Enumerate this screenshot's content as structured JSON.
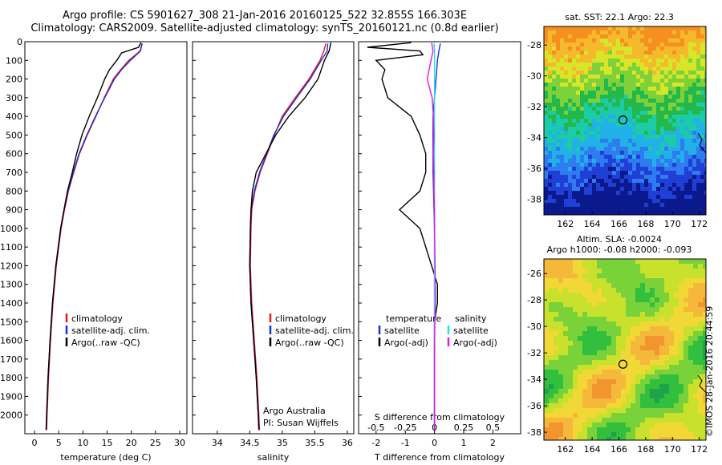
{
  "header": {
    "line1": "Argo profile: CS 5901627_308 21-Jan-2016 20160125_522 32.855S 166.303E",
    "line2": "Climatology: CARS2009. Satellite-adjusted climatology: synTS_20160121.nc (0.8d earlier)"
  },
  "stamp": "©IMOS 28-Jan-2016 20:44:59",
  "colors": {
    "red": "#e41a1c",
    "blue": "#1f2fd6",
    "black": "#000000",
    "magenta": "#e815e8",
    "cyan": "#22e5e5"
  },
  "depth_ticks": [
    "0",
    "100",
    "200",
    "300",
    "400",
    "500",
    "600",
    "700",
    "800",
    "900",
    "1000",
    "1100",
    "1200",
    "1300",
    "1400",
    "1500",
    "1600",
    "1700",
    "1800",
    "1900",
    "2000"
  ],
  "chart_data": [
    {
      "type": "line",
      "xlabel": "temperature (deg C)",
      "xticks": [
        "0",
        "5",
        "10",
        "15",
        "20",
        "25",
        "30"
      ],
      "xlim": [
        -2,
        31.5
      ],
      "ylim": [
        2100,
        0
      ],
      "legend": [
        "climatology",
        "satellite-adj. clim.",
        "Argo(..raw -QC)"
      ],
      "series": [
        {
          "name": "climatology",
          "color": "red",
          "depth": [
            10,
            50,
            100,
            150,
            200,
            300,
            400,
            500,
            600,
            700,
            800,
            900,
            1000,
            1200,
            1400,
            1600,
            1800,
            2000,
            2080
          ],
          "values": [
            22.3,
            21.8,
            19.5,
            17.8,
            16.3,
            14.4,
            12.7,
            10.9,
            9.3,
            8.1,
            7.0,
            6.2,
            5.5,
            4.5,
            3.8,
            3.3,
            2.9,
            2.6,
            2.5
          ]
        },
        {
          "name": "satellite-adj. clim.",
          "color": "blue",
          "depth": [
            10,
            50,
            100,
            150,
            200,
            300,
            400,
            500,
            600,
            700,
            800,
            900,
            1000,
            1200,
            1400,
            1600,
            1800,
            2000,
            2080
          ],
          "values": [
            22.2,
            21.9,
            19.8,
            18.0,
            16.5,
            14.5,
            12.6,
            10.8,
            9.2,
            8.0,
            6.9,
            6.1,
            5.4,
            4.4,
            3.7,
            3.2,
            2.8,
            2.5,
            2.4
          ]
        },
        {
          "name": "Argo(..raw -QC)",
          "color": "black",
          "depth": [
            5,
            30,
            60,
            100,
            150,
            200,
            300,
            400,
            500,
            600,
            700,
            800,
            900,
            1000,
            1200,
            1400,
            1600,
            1800,
            2000,
            2080
          ],
          "values": [
            22.0,
            21.5,
            18.0,
            17.0,
            15.5,
            14.5,
            13.0,
            11.3,
            9.8,
            8.7,
            7.8,
            6.8,
            6.1,
            5.4,
            4.4,
            3.7,
            3.2,
            2.8,
            2.5,
            2.4
          ]
        }
      ],
      "caption": []
    },
    {
      "type": "line",
      "xlabel": "salinity",
      "xticks": [
        "34",
        "34.5",
        "35",
        "35.5",
        "36"
      ],
      "xlim": [
        33.62,
        36.1
      ],
      "ylim": [
        2100,
        0
      ],
      "legend": [
        "climatology",
        "satellite-adj. clim.",
        "Argo(..raw -QC)"
      ],
      "series": [
        {
          "name": "climatology",
          "color": "red",
          "depth": [
            10,
            50,
            100,
            200,
            300,
            400,
            500,
            600,
            700,
            800,
            900,
            1000,
            1200,
            1400,
            1600,
            1800,
            2000,
            2080
          ],
          "values": [
            35.67,
            35.64,
            35.58,
            35.41,
            35.2,
            35.0,
            34.88,
            34.77,
            34.66,
            34.58,
            34.53,
            34.52,
            34.51,
            34.53,
            34.57,
            34.61,
            34.64,
            34.65
          ]
        },
        {
          "name": "satellite-adj. clim.",
          "color": "blue",
          "depth": [
            10,
            50,
            100,
            200,
            300,
            400,
            500,
            600,
            700,
            800,
            900,
            1000,
            1200,
            1400,
            1600,
            1800,
            2000,
            2080
          ],
          "values": [
            35.7,
            35.69,
            35.6,
            35.43,
            35.22,
            35.02,
            34.87,
            34.76,
            34.65,
            34.57,
            34.52,
            34.51,
            34.5,
            34.52,
            34.56,
            34.6,
            34.63,
            34.64
          ]
        },
        {
          "name": "Argo(..raw -QC)",
          "color": "black",
          "depth": [
            5,
            50,
            100,
            200,
            300,
            400,
            500,
            600,
            700,
            800,
            900,
            1000,
            1200,
            1400,
            1600,
            1800,
            2000,
            2080
          ],
          "values": [
            35.75,
            35.72,
            35.65,
            35.55,
            35.35,
            35.1,
            34.9,
            34.75,
            34.6,
            34.54,
            34.52,
            34.51,
            34.5,
            34.52,
            34.56,
            34.6,
            34.63,
            34.64
          ]
        }
      ],
      "caption": [
        "Argo Australia",
        "PI: Susan Wijffels"
      ]
    },
    {
      "type": "line",
      "xlabel": "T difference from climatology",
      "xticks": [
        "-2",
        "-1",
        "0",
        "1",
        "2"
      ],
      "x2label": "S difference from climatology",
      "x2ticks": [
        "-0.5",
        "-0.25",
        "0",
        "0.25",
        "0.5"
      ],
      "xlim": [
        -2.6,
        2.95
      ],
      "ylim": [
        2100,
        0
      ],
      "legend_titles": [
        "temperature",
        "salinity"
      ],
      "legend": [
        [
          "satellite",
          "Argo(-adj)"
        ],
        [
          "satellite",
          "Argo(-adj)"
        ]
      ],
      "series": [
        {
          "name": "satellite",
          "group": "temperature",
          "color": "blue",
          "depth": [
            10,
            50,
            100,
            200,
            400,
            700,
            1000,
            1500,
            2000,
            2080
          ],
          "values": [
            0.2,
            0.15,
            0.1,
            0.05,
            -0.05,
            -0.05,
            0.0,
            0.0,
            0.0,
            0.0
          ]
        },
        {
          "name": "Argo(-adj)",
          "group": "temperature",
          "color": "black",
          "depth": [
            5,
            30,
            50,
            70,
            100,
            150,
            200,
            300,
            400,
            500,
            600,
            700,
            800,
            900,
            1000,
            1100,
            1200,
            1300,
            1400,
            1500,
            1600,
            1800,
            2000,
            2080
          ],
          "values": [
            -0.8,
            -2.3,
            -0.5,
            -0.4,
            -2.0,
            -1.7,
            -1.8,
            -1.6,
            -0.8,
            -0.5,
            -0.3,
            -0.3,
            -0.5,
            -1.2,
            -0.5,
            -0.3,
            -0.1,
            0.1,
            0.1,
            0.0,
            0.0,
            0.0,
            0.0,
            0.0
          ]
        },
        {
          "name": "satellite",
          "group": "salinity",
          "color": "cyan",
          "depth": [
            10,
            50,
            100,
            200,
            400,
            700,
            1000,
            1500,
            2000,
            2080
          ],
          "values": [
            -0.02,
            0.0,
            0.0,
            0.0,
            0.0,
            0.0,
            0.0,
            0.0,
            0.0,
            0.0
          ]
        },
        {
          "name": "Argo(-adj)",
          "group": "salinity",
          "color": "magenta",
          "depth": [
            5,
            50,
            100,
            200,
            300,
            400,
            500,
            600,
            700,
            800,
            900,
            1000,
            1200,
            1400,
            1600,
            1800,
            2000,
            2080
          ],
          "values": [
            -0.1,
            -0.05,
            -0.12,
            -0.25,
            -0.08,
            -0.04,
            -0.02,
            -0.04,
            -0.02,
            -0.02,
            0.0,
            0.0,
            0.02,
            0.03,
            0.0,
            0.0,
            0.0,
            0.0
          ]
        }
      ],
      "caption": []
    },
    {
      "type": "heatmap",
      "title": "sat. SST: 22.1  Argo: 22.3",
      "xticks": [
        "162",
        "164",
        "166",
        "168",
        "170",
        "172"
      ],
      "yticks": [
        "-28",
        "-30",
        "-32",
        "-34",
        "-36",
        "-38"
      ],
      "xlim": [
        160.4,
        172.5
      ],
      "ylim": [
        -39,
        -26.8
      ],
      "marker": {
        "lon": 166.3,
        "lat": -32.855
      }
    },
    {
      "type": "heatmap",
      "title": "Altim. SLA: -0.0024",
      "subtitle": "Argo h1000: -0.08 h2000: -0.093",
      "xticks": [
        "162",
        "164",
        "166",
        "168",
        "170",
        "172"
      ],
      "yticks": [
        "-26",
        "-28",
        "-30",
        "-32",
        "-34",
        "-36",
        "-38"
      ],
      "xlim": [
        160.4,
        172.5
      ],
      "ylim": [
        -38.6,
        -24.9
      ],
      "marker": {
        "lon": 166.3,
        "lat": -32.855
      }
    }
  ]
}
